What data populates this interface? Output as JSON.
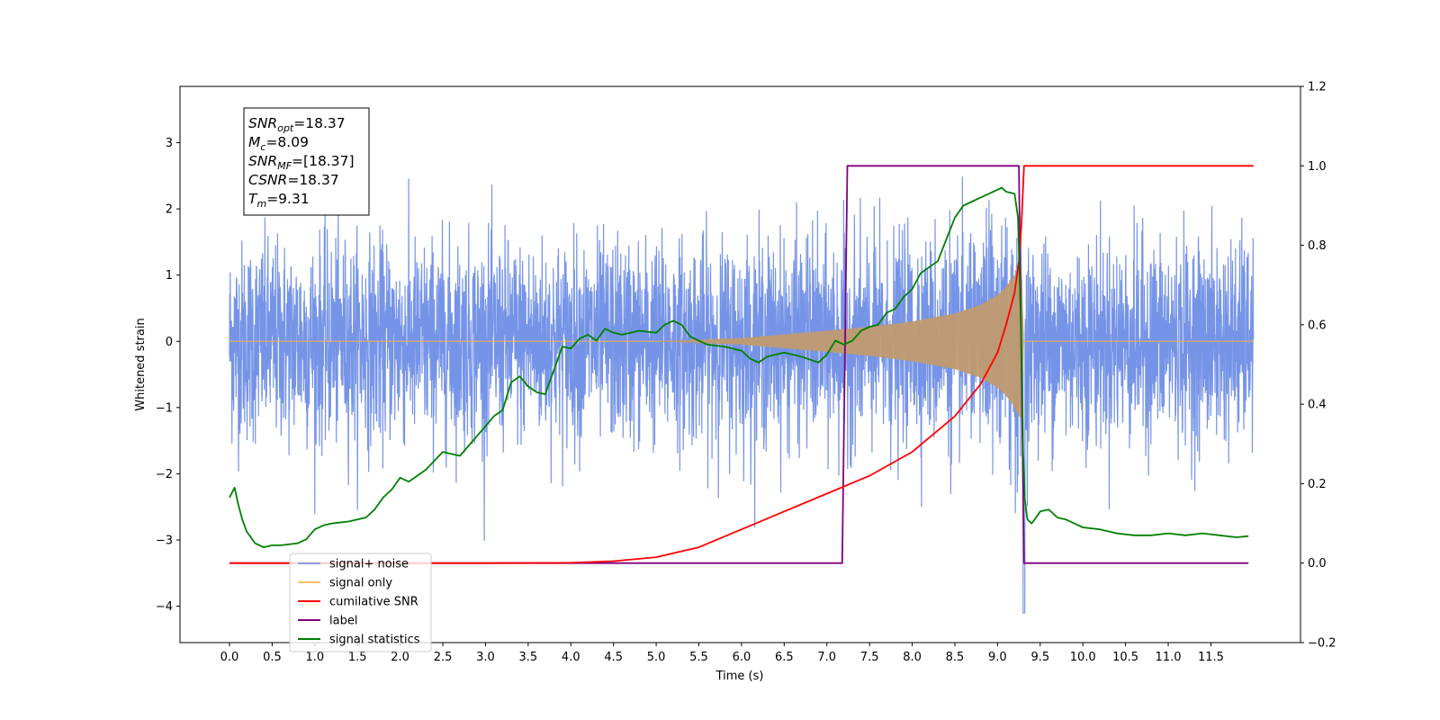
{
  "chart_data": {
    "type": "line",
    "xlabel": "Time (s)",
    "ylabel_left": "Whitened strain",
    "ylabel_right": "",
    "xlim": [
      -0.58,
      12.55
    ],
    "ylim_left": [
      -4.55,
      3.85
    ],
    "ylim_right": [
      -0.2,
      1.2
    ],
    "x_ticks": [
      "0.0",
      "0.5",
      "1.0",
      "1.5",
      "2.0",
      "2.5",
      "3.0",
      "3.5",
      "4.0",
      "4.5",
      "5.0",
      "5.5",
      "6.0",
      "6.5",
      "7.0",
      "7.5",
      "8.0",
      "8.5",
      "9.0",
      "9.5",
      "10.0",
      "10.5",
      "11.0",
      "11.5"
    ],
    "y_ticks_left": [
      "3",
      "2",
      "1",
      "0",
      "−1",
      "−2",
      "−3",
      "−4"
    ],
    "y_ticks_right": [
      "1.2",
      "1.0",
      "0.8",
      "0.6",
      "0.4",
      "0.2",
      "0.0",
      "−0.2"
    ],
    "grid": false,
    "legend_position": "bottom-left",
    "annotation": [
      {
        "sym": "SNR",
        "sub": "opt",
        "rest": "=18.37"
      },
      {
        "sym": "M",
        "sub": "c",
        "rest": "=8.09"
      },
      {
        "sym": "SNR",
        "sub": "MF",
        "rest": "=[18.37]"
      },
      {
        "sym": "CSNR",
        "sub": "",
        "rest": "=18.37"
      },
      {
        "sym": "T",
        "sub": "m",
        "rest": "=9.31"
      }
    ],
    "series": [
      {
        "name": "signal+ noise",
        "color": "#6f8ee6",
        "axis": "left",
        "description_values": {
          "duration": 12.0,
          "noise_std_approx": 0.75,
          "peak": 3.33,
          "trough": -4.1
        }
      },
      {
        "name": "signal only",
        "color": "#f5b041",
        "axis": "left",
        "envelope": {
          "x": [
            0.0,
            5.0,
            6.0,
            7.0,
            7.5,
            8.0,
            8.5,
            8.8,
            9.0,
            9.1,
            9.2,
            9.28,
            9.31,
            12.0
          ],
          "y": [
            0.0,
            0.0,
            0.05,
            0.16,
            0.22,
            0.3,
            0.42,
            0.55,
            0.7,
            0.82,
            1.0,
            1.2,
            0.0,
            0.0
          ]
        }
      },
      {
        "name": "cumilative SNR",
        "color": "#ff0000",
        "axis": "right",
        "x": [
          0.0,
          3.0,
          4.0,
          4.5,
          5.0,
          5.5,
          6.0,
          6.5,
          7.0,
          7.5,
          8.0,
          8.5,
          8.8,
          9.0,
          9.1,
          9.2,
          9.25,
          9.28,
          9.31,
          12.0
        ],
        "y": [
          0.0,
          0.0,
          0.001,
          0.005,
          0.015,
          0.04,
          0.085,
          0.13,
          0.175,
          0.22,
          0.28,
          0.37,
          0.45,
          0.53,
          0.6,
          0.68,
          0.76,
          0.85,
          1.0,
          1.0
        ]
      },
      {
        "name": "label",
        "color": "#800080",
        "axis": "right",
        "x": [
          0.0,
          7.18,
          7.24,
          9.25,
          9.31,
          11.94
        ],
        "y": [
          0.0,
          0.0,
          1.0,
          1.0,
          0.0,
          0.0
        ]
      },
      {
        "name": "signal statistics",
        "color": "#008000",
        "axis": "right",
        "x": [
          0.0,
          0.06,
          0.1,
          0.15,
          0.2,
          0.3,
          0.4,
          0.5,
          0.6,
          0.8,
          0.9,
          1.0,
          1.1,
          1.2,
          1.4,
          1.6,
          1.7,
          1.8,
          1.9,
          2.0,
          2.1,
          2.3,
          2.5,
          2.7,
          2.9,
          3.0,
          3.1,
          3.2,
          3.3,
          3.4,
          3.5,
          3.6,
          3.7,
          3.8,
          3.9,
          4.0,
          4.1,
          4.2,
          4.3,
          4.4,
          4.5,
          4.6,
          4.8,
          5.0,
          5.1,
          5.2,
          5.3,
          5.4,
          5.6,
          5.8,
          6.0,
          6.1,
          6.2,
          6.3,
          6.5,
          6.7,
          6.9,
          7.0,
          7.1,
          7.2,
          7.3,
          7.4,
          7.5,
          7.6,
          7.7,
          7.8,
          7.9,
          8.0,
          8.1,
          8.3,
          8.5,
          8.6,
          8.7,
          8.8,
          8.9,
          9.0,
          9.05,
          9.1,
          9.2,
          9.24,
          9.28,
          9.3,
          9.32,
          9.35,
          9.4,
          9.45,
          9.5,
          9.6,
          9.7,
          9.8,
          9.9,
          10.0,
          10.2,
          10.4,
          10.6,
          10.8,
          11.0,
          11.2,
          11.4,
          11.6,
          11.8,
          11.94
        ],
        "y": [
          0.165,
          0.19,
          0.15,
          0.11,
          0.08,
          0.05,
          0.04,
          0.045,
          0.045,
          0.05,
          0.06,
          0.085,
          0.095,
          0.1,
          0.105,
          0.115,
          0.135,
          0.165,
          0.185,
          0.215,
          0.205,
          0.235,
          0.28,
          0.27,
          0.32,
          0.345,
          0.37,
          0.385,
          0.455,
          0.47,
          0.445,
          0.43,
          0.425,
          0.485,
          0.545,
          0.54,
          0.565,
          0.575,
          0.56,
          0.59,
          0.58,
          0.575,
          0.585,
          0.58,
          0.6,
          0.61,
          0.6,
          0.57,
          0.55,
          0.545,
          0.535,
          0.515,
          0.505,
          0.52,
          0.53,
          0.52,
          0.505,
          0.525,
          0.56,
          0.55,
          0.56,
          0.585,
          0.595,
          0.6,
          0.63,
          0.64,
          0.67,
          0.69,
          0.73,
          0.76,
          0.87,
          0.9,
          0.91,
          0.92,
          0.93,
          0.94,
          0.945,
          0.935,
          0.93,
          0.87,
          0.55,
          0.28,
          0.16,
          0.11,
          0.1,
          0.115,
          0.13,
          0.135,
          0.115,
          0.11,
          0.1,
          0.09,
          0.085,
          0.075,
          0.07,
          0.07,
          0.075,
          0.07,
          0.075,
          0.07,
          0.065,
          0.068
        ]
      }
    ]
  }
}
